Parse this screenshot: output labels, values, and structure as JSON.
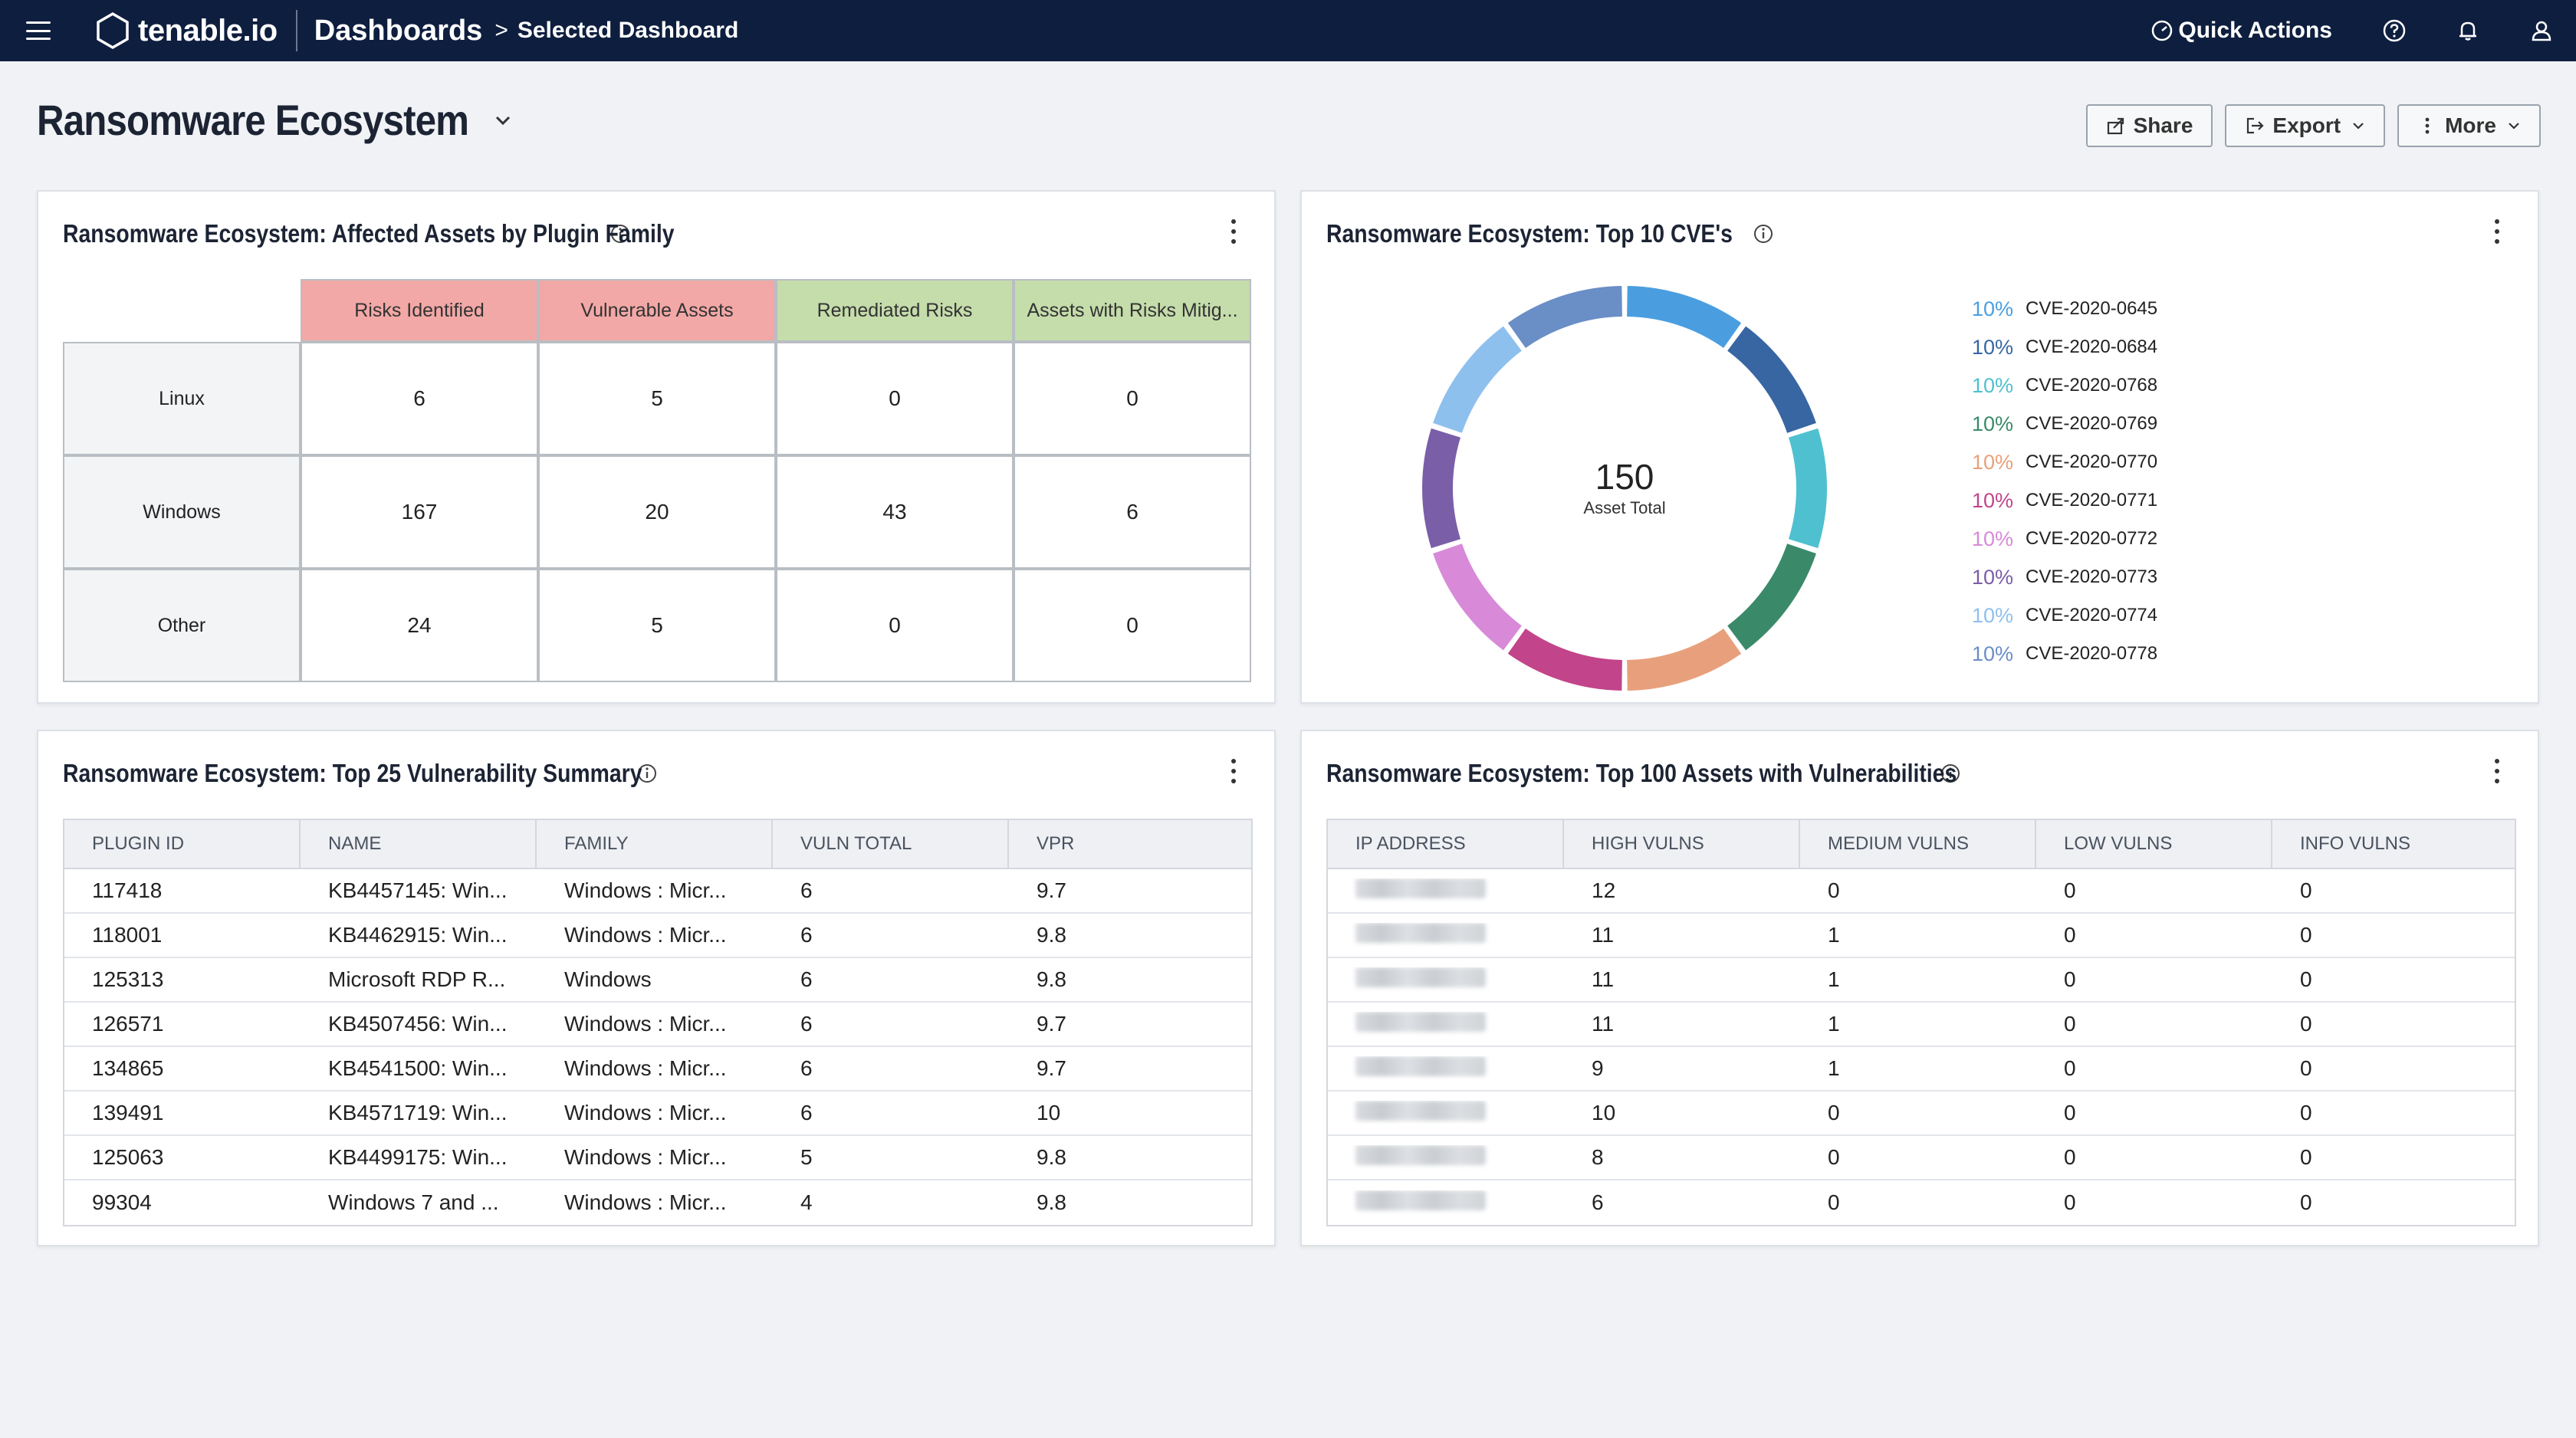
{
  "topbar": {
    "logo_text": "tenable.io",
    "breadcrumb_main": "Dashboards",
    "breadcrumb_sep": ">",
    "breadcrumb_sub": "Selected Dashboard",
    "quick_actions": "Quick Actions",
    "icons": [
      "menu-icon",
      "help-icon",
      "bell-icon",
      "user-icon"
    ]
  },
  "page": {
    "title": "Ransomware Ecosystem",
    "share": "Share",
    "export": "Export",
    "more": "More"
  },
  "widgets": {
    "plugin_family": {
      "title": "Ransomware Ecosystem: Affected Assets by Plugin Family",
      "columns": [
        "Risks Identified",
        "Vulnerable Assets",
        "Remediated Risks",
        "Assets with Risks Mitig..."
      ],
      "column_colors": [
        "#f2a8a6",
        "#f2a8a6",
        "#c5dcab",
        "#c5dcab"
      ],
      "rows": [
        {
          "label": "Linux",
          "values": [
            "6",
            "5",
            "0",
            "0"
          ]
        },
        {
          "label": "Windows",
          "values": [
            "167",
            "20",
            "43",
            "6"
          ]
        },
        {
          "label": "Other",
          "values": [
            "24",
            "5",
            "0",
            "0"
          ]
        }
      ]
    },
    "top_cves": {
      "title": "Ransomware Ecosystem: Top 10 CVE's",
      "center_value": "150",
      "center_label": "Asset Total",
      "legend": [
        {
          "pct": "10%",
          "label": "CVE-2020-0645",
          "color": "#4a9ee0"
        },
        {
          "pct": "10%",
          "label": "CVE-2020-0684",
          "color": "#3866a3"
        },
        {
          "pct": "10%",
          "label": "CVE-2020-0768",
          "color": "#4fc0cf"
        },
        {
          "pct": "10%",
          "label": "CVE-2020-0769",
          "color": "#3a8a6a"
        },
        {
          "pct": "10%",
          "label": "CVE-2020-0770",
          "color": "#e8a07c"
        },
        {
          "pct": "10%",
          "label": "CVE-2020-0771",
          "color": "#c2448a"
        },
        {
          "pct": "10%",
          "label": "CVE-2020-0772",
          "color": "#d88ad8"
        },
        {
          "pct": "10%",
          "label": "CVE-2020-0773",
          "color": "#7a5ea8"
        },
        {
          "pct": "10%",
          "label": "CVE-2020-0774",
          "color": "#8ec0ee"
        },
        {
          "pct": "10%",
          "label": "CVE-2020-0778",
          "color": "#6a8ec6"
        }
      ]
    },
    "vuln_summary": {
      "title": "Ransomware Ecosystem: Top 25 Vulnerability Summary",
      "columns": [
        "PLUGIN ID",
        "NAME",
        "FAMILY",
        "VULN TOTAL",
        "VPR"
      ],
      "rows": [
        [
          "117418",
          "KB4457145: Win...",
          "Windows : Micr...",
          "6",
          "9.7"
        ],
        [
          "118001",
          "KB4462915: Win...",
          "Windows : Micr...",
          "6",
          "9.8"
        ],
        [
          "125313",
          "Microsoft RDP R...",
          "Windows",
          "6",
          "9.8"
        ],
        [
          "126571",
          "KB4507456: Win...",
          "Windows : Micr...",
          "6",
          "9.7"
        ],
        [
          "134865",
          "KB4541500: Win...",
          "Windows : Micr...",
          "6",
          "9.7"
        ],
        [
          "139491",
          "KB4571719: Win...",
          "Windows : Micr...",
          "6",
          "10"
        ],
        [
          "125063",
          "KB4499175: Win...",
          "Windows : Micr...",
          "5",
          "9.8"
        ],
        [
          "99304",
          "Windows 7 and ...",
          "Windows : Micr...",
          "4",
          "9.8"
        ]
      ]
    },
    "top_assets": {
      "title": "Ransomware Ecosystem: Top 100 Assets with Vulnerabilities",
      "columns": [
        "IP ADDRESS",
        "HIGH VULNS",
        "MEDIUM VULNS",
        "LOW VULNS",
        "INFO VULNS"
      ],
      "rows": [
        [
          "12",
          "0",
          "0",
          "0"
        ],
        [
          "11",
          "1",
          "0",
          "0"
        ],
        [
          "11",
          "1",
          "0",
          "0"
        ],
        [
          "11",
          "1",
          "0",
          "0"
        ],
        [
          "9",
          "1",
          "0",
          "0"
        ],
        [
          "10",
          "0",
          "0",
          "0"
        ],
        [
          "8",
          "0",
          "0",
          "0"
        ],
        [
          "6",
          "0",
          "0",
          "0"
        ]
      ]
    }
  }
}
